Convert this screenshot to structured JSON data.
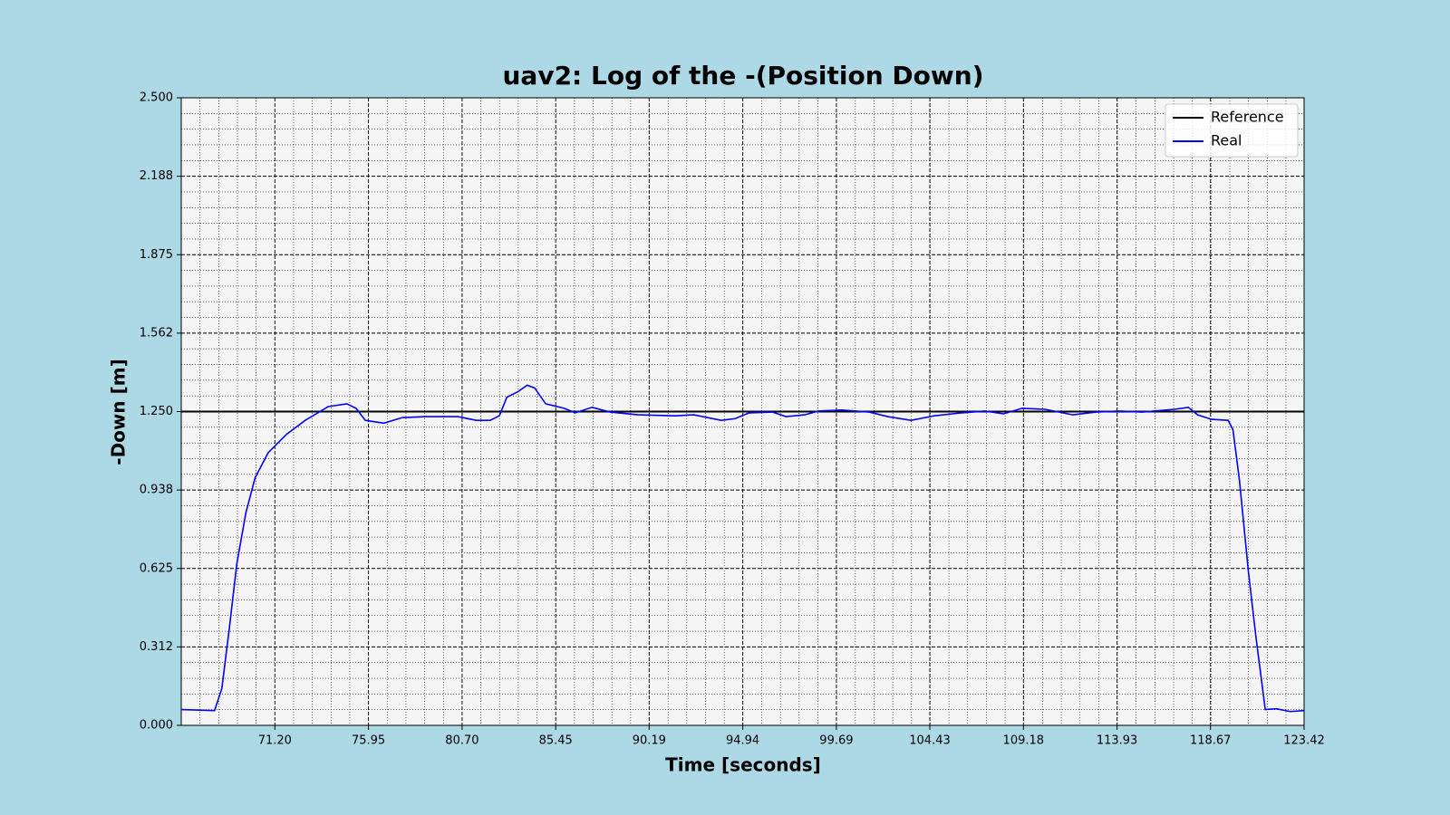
{
  "chart_data": {
    "type": "line",
    "title": "uav2: Log of the -(Position Down)",
    "x_label": "Time [seconds]",
    "y_label": "-Down [m]",
    "xlim": [
      66.45,
      123.42
    ],
    "ylim": [
      0,
      2.5
    ],
    "xticks": [
      {
        "value": 71.2,
        "label": "71.20"
      },
      75.95,
      {
        "value": 80.7,
        "label": "80.70"
      },
      85.45,
      90.19,
      94.94,
      99.69,
      104.43,
      109.18,
      113.93,
      118.67,
      123.42
    ],
    "yticks": [
      {
        "value": 0,
        "label": "0.000"
      },
      {
        "value": 0.3125,
        "label": "0.312"
      },
      0.625,
      {
        "value": 0.9375,
        "label": "0.938"
      },
      {
        "value": 1.25,
        "label": "1.250"
      },
      {
        "value": 1.5625,
        "label": "1.562"
      },
      1.875,
      {
        "value": 2.1875,
        "label": "2.188"
      },
      {
        "value": 2.5,
        "label": "2.500"
      }
    ],
    "grid": true,
    "legend_position": "upper-right",
    "series": [
      {
        "name": "Reference",
        "color": "#000000",
        "x": [
          66.45,
          123.42
        ],
        "values": [
          1.25,
          1.25
        ]
      },
      {
        "name": "Real",
        "color": "#0000ff",
        "x": [
          66.45,
          68.14,
          68.51,
          68.89,
          69.27,
          69.73,
          70.2,
          70.86,
          71.8,
          72.74,
          73.91,
          74.85,
          75.32,
          75.79,
          76.73,
          77.67,
          78.84,
          80.48,
          81.42,
          82.12,
          82.59,
          82.97,
          83.53,
          84.0,
          84.38,
          84.94,
          85.88,
          86.44,
          87.29,
          88.22,
          89.63,
          91.51,
          92.45,
          93.85,
          94.56,
          95.26,
          96.44,
          97.14,
          98.08,
          98.78,
          99.96,
          101.36,
          102.3,
          103.47,
          104.65,
          106.06,
          107.23,
          108.17,
          109.11,
          110.28,
          111.69,
          112.86,
          114.04,
          115.21,
          116.85,
          117.55,
          118.02,
          118.73,
          119.57,
          119.81,
          120.14,
          120.6,
          120.98,
          121.45,
          122.01,
          122.72,
          123.42
        ],
        "values": [
          0.063,
          0.059,
          0.147,
          0.387,
          0.644,
          0.847,
          0.987,
          1.086,
          1.16,
          1.215,
          1.27,
          1.281,
          1.263,
          1.215,
          1.204,
          1.226,
          1.23,
          1.23,
          1.215,
          1.215,
          1.233,
          1.307,
          1.329,
          1.355,
          1.344,
          1.281,
          1.263,
          1.245,
          1.267,
          1.248,
          1.237,
          1.233,
          1.237,
          1.215,
          1.222,
          1.245,
          1.248,
          1.23,
          1.237,
          1.252,
          1.256,
          1.248,
          1.23,
          1.215,
          1.233,
          1.245,
          1.252,
          1.241,
          1.263,
          1.259,
          1.237,
          1.248,
          1.252,
          1.248,
          1.259,
          1.267,
          1.237,
          1.219,
          1.215,
          1.178,
          0.976,
          0.608,
          0.35,
          0.063,
          0.066,
          0.055,
          0.059
        ]
      }
    ]
  }
}
